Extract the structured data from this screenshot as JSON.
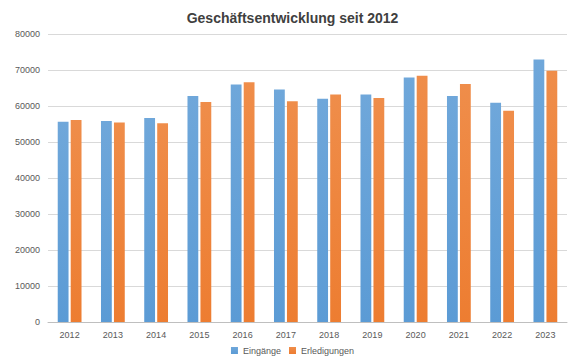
{
  "chart_data": {
    "type": "bar",
    "title": "Geschäftsentwicklung seit 2012",
    "categories": [
      "2012",
      "2013",
      "2014",
      "2015",
      "2016",
      "2017",
      "2018",
      "2019",
      "2020",
      "2021",
      "2022",
      "2023"
    ],
    "series": [
      {
        "name": "Eingänge",
        "color": "#5b9bd5",
        "values": [
          55600,
          55800,
          56700,
          62800,
          66000,
          64600,
          62000,
          63200,
          67900,
          62800,
          60900,
          72900
        ]
      },
      {
        "name": "Erledigungen",
        "color": "#ed7d31",
        "values": [
          56100,
          55400,
          55200,
          61100,
          66600,
          61300,
          63200,
          62200,
          68400,
          66100,
          58700,
          69800
        ]
      }
    ],
    "ylim": [
      0,
      80000
    ],
    "yticks": [
      0,
      10000,
      20000,
      30000,
      40000,
      50000,
      60000,
      70000,
      80000
    ],
    "grid": true,
    "legend": "bottom"
  }
}
